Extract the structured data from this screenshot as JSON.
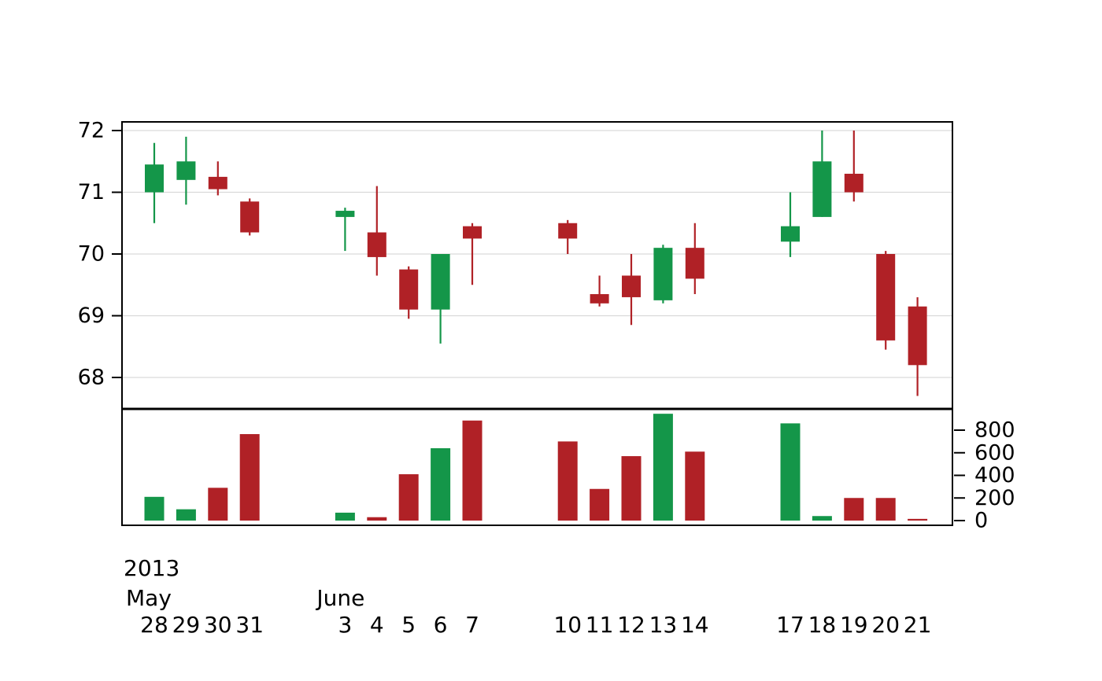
{
  "chart_data": {
    "type": "candlestick",
    "title": "",
    "x_axis": {
      "year_label": "2013",
      "month_labels": [
        {
          "label": "May",
          "anchor_date": "2013-05-28"
        },
        {
          "label": "June",
          "anchor_date": "2013-06-03"
        }
      ]
    },
    "price_axis": {
      "ticks": [
        68,
        69,
        70,
        71,
        72
      ],
      "range": [
        67.5,
        72.15
      ],
      "side": "left"
    },
    "volume_axis": {
      "ticks": [
        0,
        200,
        400,
        600,
        800
      ],
      "range": [
        0,
        1000
      ],
      "side": "right"
    },
    "colors": {
      "up": "#149649",
      "down": "#b02126",
      "grid": "#d9d9d9",
      "axis": "#000000",
      "background": "#ffffff"
    },
    "legend": "none",
    "grid": "horizontal",
    "series": [
      {
        "date": "2013-05-28",
        "day_label": "28",
        "open": 71.0,
        "high": 71.8,
        "low": 70.5,
        "close": 71.45,
        "volume": 210
      },
      {
        "date": "2013-05-29",
        "day_label": "29",
        "open": 71.2,
        "high": 71.9,
        "low": 70.8,
        "close": 71.5,
        "volume": 100
      },
      {
        "date": "2013-05-30",
        "day_label": "30",
        "open": 71.25,
        "high": 71.5,
        "low": 70.95,
        "close": 71.05,
        "volume": 290
      },
      {
        "date": "2013-05-31",
        "day_label": "31",
        "open": 70.85,
        "high": 70.9,
        "low": 70.3,
        "close": 70.35,
        "volume": 765
      },
      {
        "date": "2013-06-03",
        "day_label": "3",
        "open": 70.6,
        "high": 70.75,
        "low": 70.05,
        "close": 70.7,
        "volume": 70
      },
      {
        "date": "2013-06-04",
        "day_label": "4",
        "open": 70.35,
        "high": 71.1,
        "low": 69.65,
        "close": 69.95,
        "volume": 30
      },
      {
        "date": "2013-06-05",
        "day_label": "5",
        "open": 69.75,
        "high": 69.8,
        "low": 68.95,
        "close": 69.1,
        "volume": 410
      },
      {
        "date": "2013-06-06",
        "day_label": "6",
        "open": 69.1,
        "high": 70.0,
        "low": 68.55,
        "close": 70.0,
        "volume": 640
      },
      {
        "date": "2013-06-07",
        "day_label": "7",
        "open": 70.45,
        "high": 70.5,
        "low": 69.5,
        "close": 70.25,
        "volume": 885
      },
      {
        "date": "2013-06-10",
        "day_label": "10",
        "open": 70.5,
        "high": 70.55,
        "low": 70.0,
        "close": 70.25,
        "volume": 700
      },
      {
        "date": "2013-06-11",
        "day_label": "11",
        "open": 69.35,
        "high": 69.65,
        "low": 69.15,
        "close": 69.2,
        "volume": 280
      },
      {
        "date": "2013-06-12",
        "day_label": "12",
        "open": 69.65,
        "high": 70.0,
        "low": 68.85,
        "close": 69.3,
        "volume": 570
      },
      {
        "date": "2013-06-13",
        "day_label": "13",
        "open": 69.25,
        "high": 70.15,
        "low": 69.2,
        "close": 70.1,
        "volume": 945
      },
      {
        "date": "2013-06-14",
        "day_label": "14",
        "open": 70.1,
        "high": 70.5,
        "low": 69.35,
        "close": 69.6,
        "volume": 610
      },
      {
        "date": "2013-06-17",
        "day_label": "17",
        "open": 70.2,
        "high": 71.0,
        "low": 69.95,
        "close": 70.45,
        "volume": 860
      },
      {
        "date": "2013-06-18",
        "day_label": "18",
        "open": 70.6,
        "high": 72.0,
        "low": 70.6,
        "close": 71.5,
        "volume": 40
      },
      {
        "date": "2013-06-19",
        "day_label": "19",
        "open": 71.3,
        "high": 72.0,
        "low": 70.85,
        "close": 71.0,
        "volume": 200
      },
      {
        "date": "2013-06-20",
        "day_label": "20",
        "open": 70.0,
        "high": 70.05,
        "low": 68.45,
        "close": 68.6,
        "volume": 200
      },
      {
        "date": "2013-06-21",
        "day_label": "21",
        "open": 69.15,
        "high": 69.3,
        "low": 67.7,
        "close": 68.2,
        "volume": 15
      }
    ]
  }
}
